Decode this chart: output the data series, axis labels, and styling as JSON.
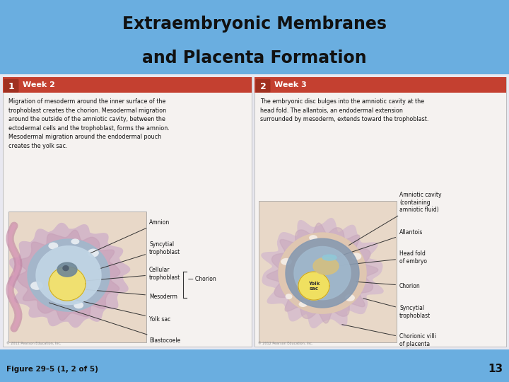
{
  "title_line1": "Extraembryonic Membranes",
  "title_line2": "and Placenta Formation",
  "title_color": "#111111",
  "header_bg": "#6aaee0",
  "content_bg": "#e8e8f0",
  "footer_bg": "#ede8f2",
  "figure_label": "Figure 29–5 (1, 2 of 5)",
  "page_number": "13",
  "panel1_number": "1",
  "panel1_week": "Week 2",
  "panel1_text": "Migration of mesoderm around the inner surface of the\ntrophoblast creates the chorion. Mesodermal migration\naround the outside of the amniotic cavity, between the\nectodermal cells and the trophoblast, forms the amnion.\nMesodermal migration around the endodermal pouch\ncreates the yolk sac.",
  "panel2_number": "2",
  "panel2_week": "Week 3",
  "panel2_text": "The embryonic disc bulges into the amniotic cavity at the\nhead fold. The allantois, an endodermal extension\nsurrounded by mesoderm, extends toward the trophoblast.",
  "copyright1": "© 2012 Pearson Education, Inc.",
  "copyright2": "© 2012 Pearson Education, Inc."
}
